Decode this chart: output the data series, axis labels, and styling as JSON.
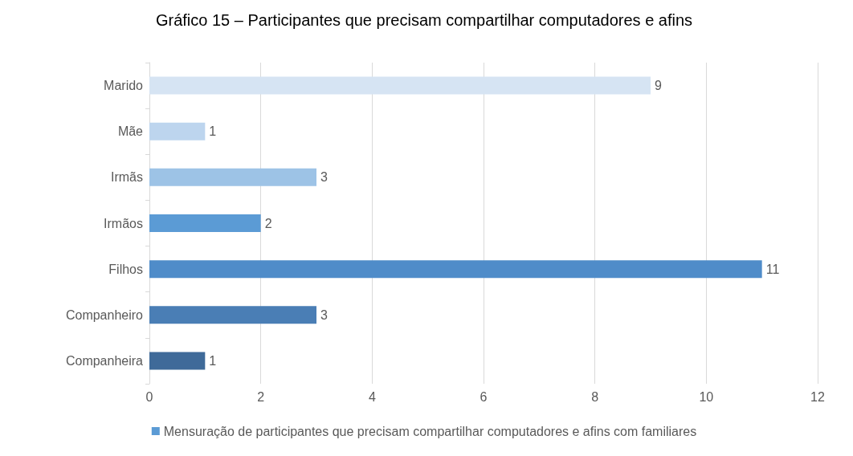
{
  "chart_data": {
    "type": "bar",
    "orientation": "horizontal",
    "title": "Gráfico 15 – Participantes que precisam compartilhar computadores e afins",
    "categories": [
      "Marido",
      "Mãe",
      "Irmãs",
      "Irmãos",
      "Filhos",
      "Companheiro",
      "Companheira"
    ],
    "series": [
      {
        "name": "Mensuração de participantes que precisam compartilhar computadores e afins com familiares",
        "color": "#5b9bd5",
        "values": [
          9,
          1,
          3,
          2,
          11,
          3,
          1
        ],
        "colors": [
          "#d6e4f3",
          "#bdd5ee",
          "#9dc3e6",
          "#5b9bd5",
          "#4f8cc9",
          "#4a7eb5",
          "#3f6a99"
        ]
      }
    ],
    "xlim": [
      0,
      12
    ],
    "xticks": [
      0,
      2,
      4,
      6,
      8,
      10,
      12
    ],
    "grid": "x",
    "data_labels": true,
    "legend": "bottom"
  }
}
